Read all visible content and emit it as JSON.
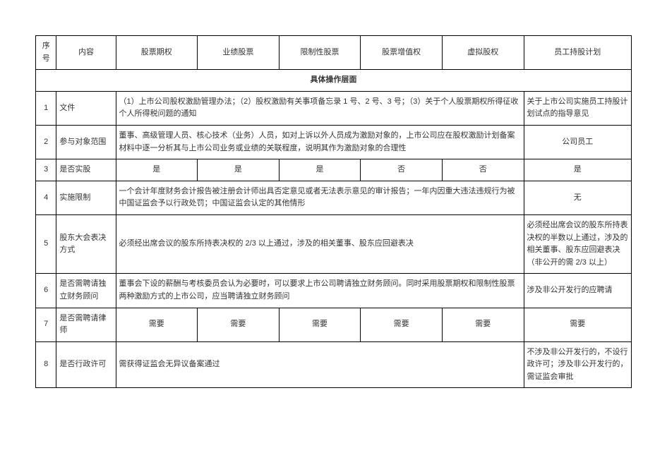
{
  "header": {
    "seq": "序号",
    "content": "内容",
    "col1": "股票期权",
    "col2": "业绩股票",
    "col3": "限制性股票",
    "col4": "股票增值权",
    "col5": "虚拟股权",
    "col6": "员工持股计划"
  },
  "section_title": "具体操作层面",
  "rows": [
    {
      "seq": "1",
      "label": "文件",
      "merged": "（1）上市公司股权激励管理办法；（2）股权激励有关事项备忘录 1 号、2 号、3 号；（3）关于个人股票期权所得征收个人所得税问题的通知",
      "last": "关于上市公司实施员工持股计划试点的指导意见"
    },
    {
      "seq": "2",
      "label": "参与对象范围",
      "merged": "董事、高级管理人员、核心技术（业务）人员，如对上诉以外人员成为激励对象的，上市公司应在股权激励计划备案材料中逐一分析其与上市公司业务或业绩的关联程度，说明其作为激励对象的合理性",
      "last": "公司员工"
    },
    {
      "seq": "3",
      "label": "是否实股",
      "c1": "是",
      "c2": "是",
      "c3": "是",
      "c4": "否",
      "c5": "否",
      "last": "是"
    },
    {
      "seq": "4",
      "label": "实施限制",
      "merged": "一个会计年度财务会计报告被注册会计师出具否定意见或者无法表示意见的审计报告；一年内因重大违法违规行为被中国证监会予以行政处罚；中国证监会认定的其他情形",
      "last": "无"
    },
    {
      "seq": "5",
      "label": "股东大会表决方式",
      "merged": "必须经出席会议的股东所持表决权的 2/3 以上通过，涉及的相关董事、股东应回避表决",
      "last": "必须经出席会议的股东所持表决权的半数以上通过，涉及的相关董事、股东应回避表决（非公开的需 2/3 以上）"
    },
    {
      "seq": "6",
      "label": "是否需聘请独立财务顾问",
      "merged": "董事会下设的薪酬与考核委员会认为必要时，可以要求上市公司聘请独立财务顾问。同时采用股票期权和限制性股票两种激励方式的上市公司，应当聘请独立财务顾问",
      "last": "涉及非公开发行的应聘请"
    },
    {
      "seq": "7",
      "label": "是否需聘请律师",
      "c1": "需要",
      "c2": "需要",
      "c3": "需要",
      "c4": "需要",
      "c5": "需要",
      "last": "需要"
    },
    {
      "seq": "8",
      "label": "是否行政许可",
      "merged": "需获得证监会无异议备案通过",
      "last": "不涉及非公开发行的，不设行政许可；涉及非公开发行的，需证监会审批"
    }
  ]
}
